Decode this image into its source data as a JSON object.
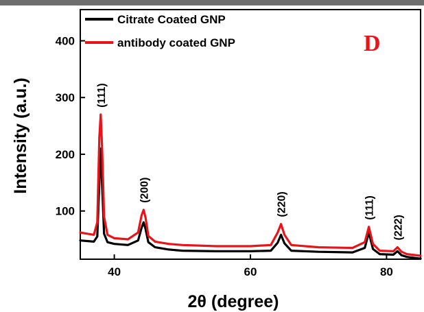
{
  "chart_data": {
    "type": "line",
    "panel_label": "D",
    "xlabel": "2θ (degree)",
    "ylabel": "Intensity (a.u.)",
    "xlim": [
      35,
      85
    ],
    "ylim": [
      15,
      455
    ],
    "xticks": [
      40,
      60,
      80
    ],
    "yticks": [
      100,
      200,
      300,
      400
    ],
    "grid": false,
    "legend_position": "top-left",
    "series": [
      {
        "name": "Citrate Coated GNP",
        "color": "#000000",
        "x": [
          35,
          36,
          37,
          37.5,
          37.8,
          38.0,
          38.2,
          38.5,
          39,
          40,
          42,
          43.5,
          44.0,
          44.3,
          44.6,
          45.0,
          46,
          48,
          50,
          55,
          60,
          63,
          64.0,
          64.5,
          65.0,
          66,
          70,
          75,
          76.8,
          77.4,
          78.0,
          79,
          81.0,
          81.6,
          82.2,
          83,
          85
        ],
        "y": [
          48,
          47,
          46,
          55,
          150,
          210,
          150,
          60,
          45,
          42,
          40,
          48,
          70,
          80,
          68,
          45,
          36,
          32,
          30,
          29,
          29,
          30,
          44,
          58,
          43,
          30,
          28,
          27,
          35,
          62,
          33,
          24,
          23,
          29,
          22,
          19,
          16
        ]
      },
      {
        "name": "antibody coated GNP",
        "color": "#e8141a",
        "x": [
          35,
          36,
          37,
          37.5,
          37.8,
          38.0,
          38.2,
          38.5,
          39,
          40,
          42,
          43.5,
          44.0,
          44.3,
          44.6,
          45.0,
          46,
          48,
          50,
          55,
          60,
          63,
          64.0,
          64.5,
          65.0,
          66,
          70,
          75,
          76.8,
          77.4,
          78.0,
          79,
          81.0,
          81.6,
          82.2,
          83,
          85
        ],
        "y": [
          62,
          60,
          58,
          80,
          230,
          270,
          215,
          90,
          58,
          52,
          50,
          62,
          92,
          102,
          88,
          56,
          46,
          42,
          40,
          38,
          38,
          40,
          62,
          77,
          58,
          40,
          36,
          35,
          45,
          72,
          42,
          30,
          29,
          36,
          28,
          24,
          21
        ]
      }
    ],
    "annotations": [
      {
        "text": "(111)",
        "x": 38.0,
        "y": 275
      },
      {
        "text": "(200)",
        "x": 44.3,
        "y": 107
      },
      {
        "text": "(220)",
        "x": 64.5,
        "y": 82
      },
      {
        "text": "(111)",
        "x": 77.4,
        "y": 77
      },
      {
        "text": "(222)",
        "x": 81.6,
        "y": 41
      }
    ]
  }
}
